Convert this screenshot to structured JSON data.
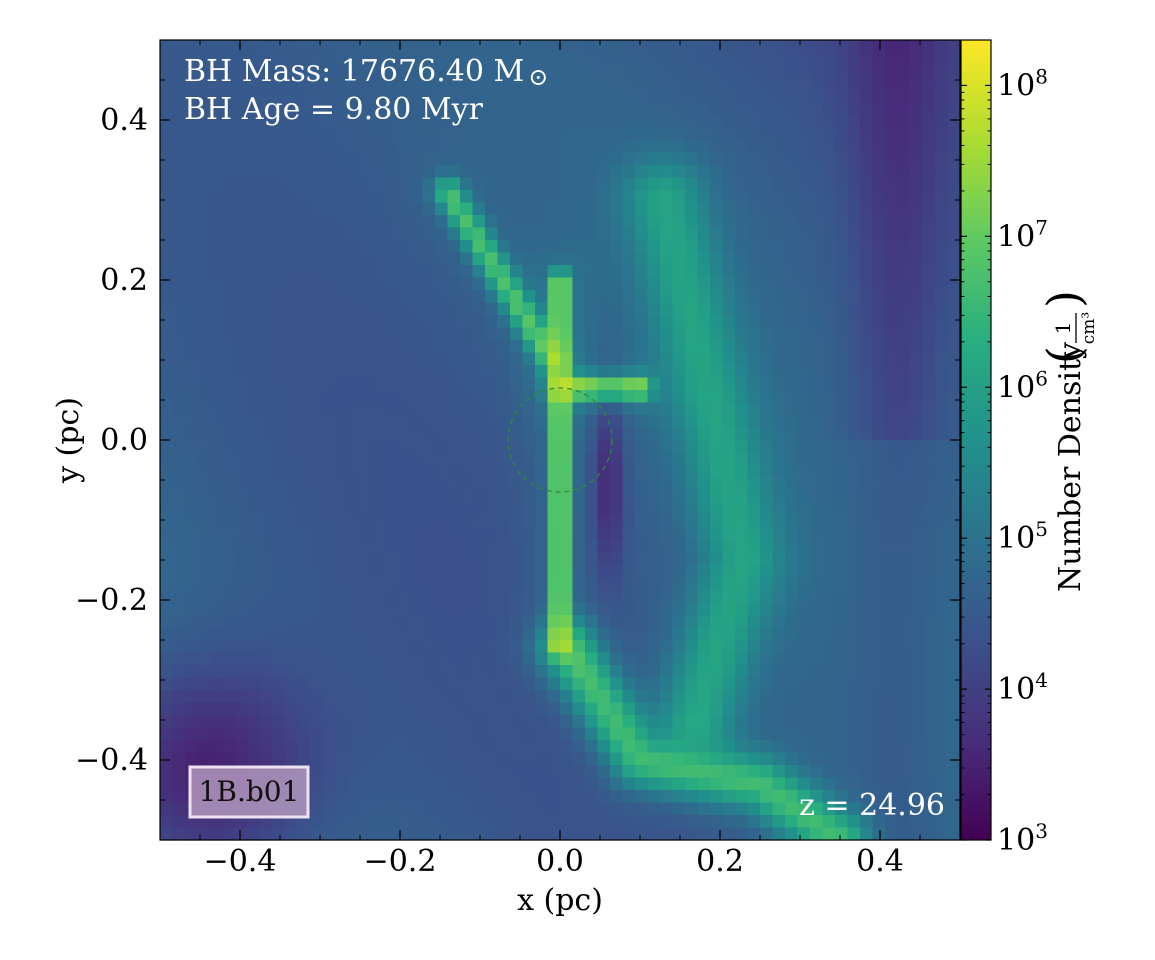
{
  "chart_data": {
    "type": "heatmap",
    "title": "",
    "xlabel": "x  (pc)",
    "ylabel": "y  (pc)",
    "xlim": [
      -0.5,
      0.5
    ],
    "ylim": [
      -0.5,
      0.5
    ],
    "xticks": [
      -0.4,
      -0.2,
      0.0,
      0.2,
      0.4
    ],
    "xtick_labels": [
      "−0.4",
      "−0.2",
      "0.0",
      "0.2",
      "0.4"
    ],
    "yticks": [
      -0.4,
      -0.2,
      0.0,
      0.2,
      0.4
    ],
    "ytick_labels": [
      "−0.4",
      "−0.2",
      "0.0",
      "0.2",
      "0.4"
    ],
    "colorbar": {
      "label": "Number Density",
      "unit_numerator": "1",
      "unit_denominator": "cm³",
      "scale": "log",
      "range": [
        1000,
        200000000
      ],
      "colormap": "viridis",
      "ticks": [
        {
          "value": 1000,
          "base": "10",
          "exp": "3"
        },
        {
          "value": 10000,
          "base": "10",
          "exp": "4"
        },
        {
          "value": 100000,
          "base": "10",
          "exp": "5"
        },
        {
          "value": 1000000,
          "base": "10",
          "exp": "6"
        },
        {
          "value": 10000000,
          "base": "10",
          "exp": "7"
        },
        {
          "value": 100000000,
          "base": "10",
          "exp": "8"
        }
      ]
    },
    "grid": false,
    "annotations": {
      "bh_mass_label": "BH Mass: 17676.40 M",
      "bh_mass_symbol": "⊙",
      "bh_age": "BH Age = 9.80 Myr",
      "redshift": "z = 24.96",
      "run_label": "1B.b01"
    },
    "circle_marker": {
      "center": [
        0.0,
        0.0
      ],
      "radius": 0.065,
      "style": "dashed",
      "color": "#2e8b3c"
    },
    "features": [
      {
        "name": "background",
        "log_density": 4.8
      },
      {
        "name": "central-filament",
        "x": [
          0.0,
          0.0
        ],
        "y": [
          -0.26,
          0.2
        ],
        "log_density": 7.7
      },
      {
        "name": "eastward-branch",
        "x": [
          0.0,
          0.1
        ],
        "y": [
          0.065,
          0.065
        ],
        "log_density": 7.2
      },
      {
        "name": "northwest-arm",
        "x": [
          -0.14,
          -0.01
        ],
        "y": [
          0.31,
          0.1
        ],
        "log_density": 6.6
      },
      {
        "name": "southern-arc",
        "x": [
          0.01,
          0.1,
          0.25,
          0.35
        ],
        "y": [
          -0.26,
          -0.4,
          -0.43,
          -0.5
        ],
        "log_density": 6.5
      },
      {
        "name": "eastern-arc",
        "x": [
          0.13,
          0.2,
          0.23,
          0.17
        ],
        "y": [
          0.3,
          0.0,
          -0.15,
          -0.35
        ],
        "log_density": 6.0
      },
      {
        "name": "southwest-void",
        "x": [
          -0.45
        ],
        "y": [
          -0.42
        ],
        "log_density": 3.3
      }
    ]
  }
}
